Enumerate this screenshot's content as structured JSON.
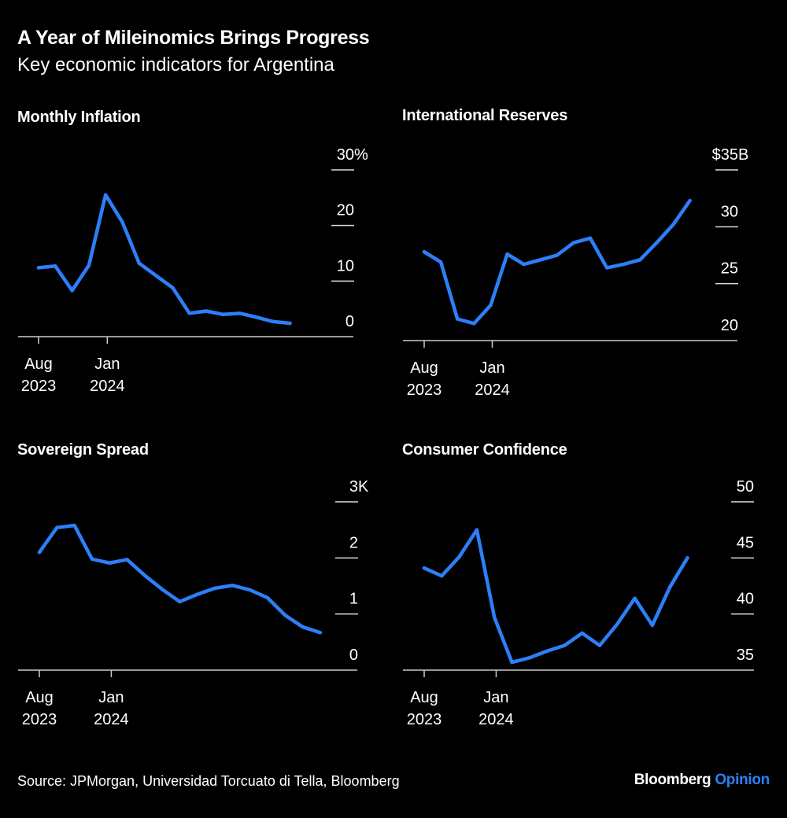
{
  "header": {
    "title": "A Year of Mileinomics Brings Progress",
    "subtitle": "Key economic indicators for Argentina"
  },
  "footer": {
    "source": "Source: JPMorgan, Universidad Torcuato di Tella, Bloomberg",
    "logo_main": "Bloomberg",
    "logo_accent": "Opinion"
  },
  "colors": {
    "background": "#000000",
    "line": "#2d7ff9",
    "text": "#ffffff",
    "axis": "#cccccc"
  },
  "chart_data": [
    {
      "type": "line",
      "title": "Monthly Inflation",
      "x": [
        "2023-08",
        "2023-09",
        "2023-10",
        "2023-11",
        "2023-12",
        "2024-01",
        "2024-02",
        "2024-03",
        "2024-04",
        "2024-05",
        "2024-06",
        "2024-07",
        "2024-08",
        "2024-09",
        "2024-10",
        "2024-11"
      ],
      "values": [
        12.4,
        12.7,
        8.3,
        12.8,
        25.5,
        20.6,
        13.2,
        11.0,
        8.8,
        4.2,
        4.6,
        4.0,
        4.2,
        3.5,
        2.7,
        2.4
      ],
      "ylim": [
        0,
        30
      ],
      "yticks": [
        {
          "value": 0,
          "label": "0",
          "suffix": ""
        },
        {
          "value": 10,
          "label": "10",
          "suffix": ""
        },
        {
          "value": 20,
          "label": "20",
          "suffix": ""
        },
        {
          "value": 30,
          "label": "30",
          "suffix": "%"
        }
      ],
      "xticks": [
        {
          "date": "2023-08",
          "label": [
            "Aug",
            "2023"
          ]
        },
        {
          "date": "2024-01",
          "label": [
            "Jan",
            "2024"
          ]
        }
      ],
      "y_axis_position": "right",
      "grid": false
    },
    {
      "type": "line",
      "title": "International Reserves",
      "x": [
        "2023-08",
        "2023-09",
        "2023-10",
        "2023-11",
        "2023-12",
        "2024-01",
        "2024-02",
        "2024-03",
        "2024-04",
        "2024-05",
        "2024-06",
        "2024-07",
        "2024-08",
        "2024-09",
        "2024-10",
        "2024-11",
        "2024-12"
      ],
      "values": [
        27.8,
        26.9,
        21.9,
        21.5,
        23.1,
        27.6,
        26.7,
        27.1,
        27.5,
        28.6,
        29.0,
        26.4,
        26.7,
        27.1,
        28.6,
        30.2,
        32.3
      ],
      "ylim": [
        20,
        35
      ],
      "yticks": [
        {
          "value": 20,
          "label": "20",
          "suffix": ""
        },
        {
          "value": 25,
          "label": "25",
          "suffix": ""
        },
        {
          "value": 30,
          "label": "30",
          "suffix": ""
        },
        {
          "value": 35,
          "label": "$35",
          "suffix": "B"
        }
      ],
      "xticks": [
        {
          "date": "2023-08",
          "label": [
            "Aug",
            "2023"
          ]
        },
        {
          "date": "2024-01",
          "label": [
            "Jan",
            "2024"
          ]
        }
      ],
      "y_axis_position": "right",
      "grid": false
    },
    {
      "type": "line",
      "title": "Sovereign Spread",
      "x": [
        "2023-08",
        "2023-09",
        "2023-10",
        "2023-11",
        "2023-12",
        "2024-01",
        "2024-02",
        "2024-03",
        "2024-04",
        "2024-05",
        "2024-06",
        "2024-07",
        "2024-08",
        "2024-09",
        "2024-10",
        "2024-11",
        "2024-12"
      ],
      "values": [
        2100,
        2540,
        2580,
        1980,
        1910,
        1970,
        1690,
        1440,
        1220,
        1350,
        1460,
        1510,
        1430,
        1290,
        980,
        770,
        670
      ],
      "ylim": [
        0,
        3000
      ],
      "yticks": [
        {
          "value": 0,
          "label": "0",
          "suffix": ""
        },
        {
          "value": 1000,
          "label": "1",
          "suffix": ""
        },
        {
          "value": 2000,
          "label": "2",
          "suffix": ""
        },
        {
          "value": 3000,
          "label": "3",
          "suffix": "K"
        }
      ],
      "xticks": [
        {
          "date": "2023-08",
          "label": [
            "Aug",
            "2023"
          ]
        },
        {
          "date": "2024-01",
          "label": [
            "Jan",
            "2024"
          ]
        }
      ],
      "y_axis_position": "right",
      "grid": false
    },
    {
      "type": "line",
      "title": "Consumer Confidence",
      "x": [
        "2023-08",
        "2023-09",
        "2023-10",
        "2023-11",
        "2023-12",
        "2024-01",
        "2024-02",
        "2024-03",
        "2024-04",
        "2024-05",
        "2024-06",
        "2024-07",
        "2024-08",
        "2024-09",
        "2024-10",
        "2024-11"
      ],
      "values": [
        44.1,
        43.4,
        45.1,
        47.5,
        39.7,
        35.7,
        36.1,
        36.7,
        37.2,
        38.3,
        37.2,
        39.1,
        41.4,
        39.0,
        42.4,
        45.0
      ],
      "ylim": [
        35,
        50
      ],
      "yticks": [
        {
          "value": 35,
          "label": "35",
          "suffix": ""
        },
        {
          "value": 40,
          "label": "40",
          "suffix": ""
        },
        {
          "value": 45,
          "label": "45",
          "suffix": ""
        },
        {
          "value": 50,
          "label": "50",
          "suffix": ""
        }
      ],
      "xticks": [
        {
          "date": "2023-08",
          "label": [
            "Aug",
            "2023"
          ]
        },
        {
          "date": "2024-01",
          "label": [
            "Jan",
            "2024"
          ]
        }
      ],
      "y_axis_position": "right",
      "grid": false
    }
  ]
}
